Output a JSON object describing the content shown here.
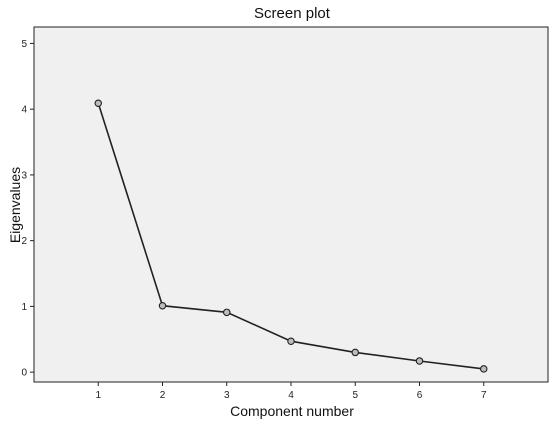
{
  "chart_data": {
    "type": "line",
    "title": "Screen plot",
    "xlabel": "Component number",
    "ylabel": "Eigenvalues",
    "x": [
      1,
      2,
      3,
      4,
      5,
      6,
      7
    ],
    "series": [
      {
        "values": [
          4.09,
          1.01,
          0.91,
          0.47,
          0.3,
          0.17,
          0.05
        ]
      }
    ],
    "xlim": [
      0,
      8
    ],
    "ylim": [
      -0.15,
      5.25
    ],
    "xticks": [
      "1",
      "2",
      "3",
      "4",
      "5",
      "6",
      "7"
    ],
    "yticks": [
      "0",
      "1",
      "2",
      "3",
      "4",
      "5"
    ],
    "grid": false,
    "legend": "none",
    "colors": {
      "plot_background": "#f0f0f0",
      "line": "#222222",
      "marker_fill": "#bdbdbd"
    }
  }
}
